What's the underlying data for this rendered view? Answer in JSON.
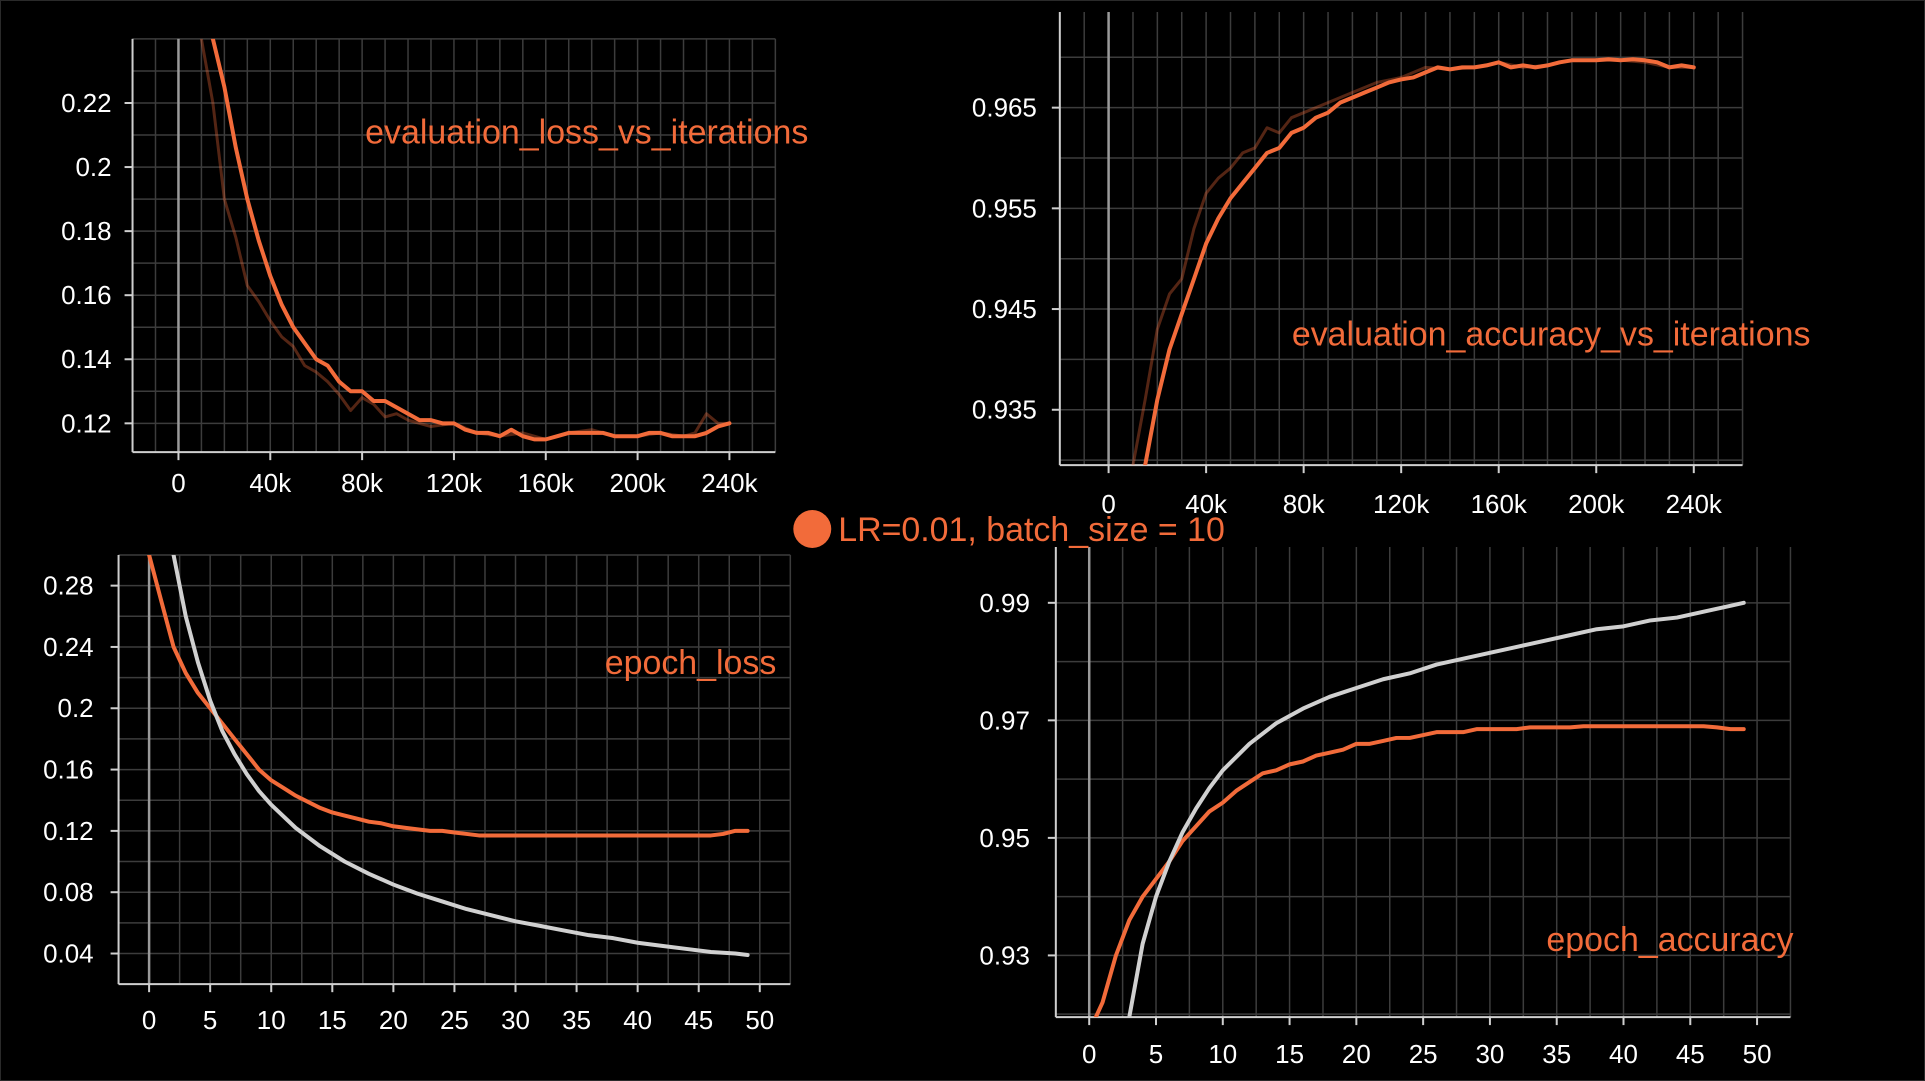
{
  "legend": {
    "label": "LR=0.01, batch_size = 10",
    "color": "#f26b3a"
  },
  "colors": {
    "background": "#000000",
    "grid": "#3c3c3c",
    "orange": "#f26b3a",
    "gray": "#d0d0d0",
    "axis": "#9a9a9a"
  },
  "chart_data": [
    {
      "id": "eval_loss",
      "type": "line",
      "title": "evaluation_loss_vs_iterations",
      "xticks": [
        "0",
        "40k",
        "80k",
        "120k",
        "160k",
        "200k",
        "240k"
      ],
      "xtick_values": [
        0,
        40000,
        80000,
        120000,
        160000,
        200000,
        240000
      ],
      "yticks": [
        "0.12",
        "0.14",
        "0.16",
        "0.18",
        "0.2",
        "0.22"
      ],
      "ytick_values": [
        0.12,
        0.14,
        0.16,
        0.18,
        0.2,
        0.22
      ],
      "xlim": [
        -20000,
        260000
      ],
      "ylim": [
        0.111,
        0.24
      ],
      "grid": true,
      "series": [
        {
          "color": "#f26b3a",
          "x": [
            15000,
            20000,
            25000,
            30000,
            35000,
            40000,
            45000,
            50000,
            55000,
            60000,
            65000,
            70000,
            75000,
            80000,
            85000,
            90000,
            95000,
            100000,
            105000,
            110000,
            115000,
            120000,
            125000,
            130000,
            135000,
            140000,
            145000,
            150000,
            155000,
            160000,
            165000,
            170000,
            175000,
            180000,
            185000,
            190000,
            195000,
            200000,
            205000,
            210000,
            215000,
            220000,
            225000,
            230000,
            235000,
            240000
          ],
          "y": [
            0.24,
            0.225,
            0.206,
            0.19,
            0.177,
            0.166,
            0.157,
            0.15,
            0.145,
            0.14,
            0.138,
            0.133,
            0.13,
            0.13,
            0.127,
            0.127,
            0.125,
            0.123,
            0.121,
            0.121,
            0.12,
            0.12,
            0.118,
            0.117,
            0.117,
            0.116,
            0.118,
            0.116,
            0.115,
            0.115,
            0.116,
            0.117,
            0.117,
            0.117,
            0.117,
            0.116,
            0.116,
            0.116,
            0.117,
            0.117,
            0.116,
            0.116,
            0.116,
            0.117,
            0.119,
            0.12
          ]
        },
        {
          "color": "#f26b3a",
          "faded": true,
          "x": [
            10000,
            15000,
            20000,
            25000,
            30000,
            35000,
            40000,
            45000,
            50000,
            55000,
            60000,
            65000,
            70000,
            75000,
            80000,
            85000,
            90000,
            95000,
            100000,
            110000,
            120000,
            130000,
            140000,
            150000,
            160000,
            170000,
            180000,
            190000,
            200000,
            210000,
            220000,
            225000,
            230000,
            235000,
            240000
          ],
          "y": [
            0.24,
            0.22,
            0.19,
            0.178,
            0.163,
            0.158,
            0.152,
            0.147,
            0.144,
            0.138,
            0.136,
            0.133,
            0.129,
            0.124,
            0.128,
            0.126,
            0.122,
            0.123,
            0.121,
            0.119,
            0.12,
            0.117,
            0.116,
            0.117,
            0.115,
            0.117,
            0.118,
            0.116,
            0.116,
            0.117,
            0.116,
            0.117,
            0.123,
            0.12,
            0.12
          ]
        }
      ]
    },
    {
      "id": "eval_acc",
      "type": "line",
      "title": "evaluation_accuracy_vs_iterations",
      "xticks": [
        "0",
        "40k",
        "80k",
        "120k",
        "160k",
        "200k",
        "240k"
      ],
      "xtick_values": [
        0,
        40000,
        80000,
        120000,
        160000,
        200000,
        240000
      ],
      "yticks": [
        "0.935",
        "0.945",
        "0.955",
        "0.965"
      ],
      "ytick_values": [
        0.935,
        0.945,
        0.955,
        0.965
      ],
      "xlim": [
        -20000,
        260000
      ],
      "ylim": [
        0.9295,
        0.9745
      ],
      "grid": true,
      "series": [
        {
          "color": "#f26b3a",
          "x": [
            15000,
            20000,
            25000,
            30000,
            35000,
            40000,
            45000,
            50000,
            55000,
            60000,
            65000,
            70000,
            75000,
            80000,
            85000,
            90000,
            95000,
            100000,
            105000,
            110000,
            115000,
            120000,
            125000,
            130000,
            135000,
            140000,
            145000,
            150000,
            155000,
            160000,
            165000,
            170000,
            175000,
            180000,
            185000,
            190000,
            195000,
            200000,
            205000,
            210000,
            215000,
            220000,
            225000,
            230000,
            235000,
            240000
          ],
          "y": [
            0.9295,
            0.936,
            0.941,
            0.9445,
            0.948,
            0.9515,
            0.954,
            0.956,
            0.9575,
            0.959,
            0.9605,
            0.961,
            0.9625,
            0.963,
            0.964,
            0.9645,
            0.9655,
            0.966,
            0.9665,
            0.967,
            0.9675,
            0.9678,
            0.968,
            0.9685,
            0.969,
            0.9688,
            0.969,
            0.969,
            0.9692,
            0.9695,
            0.969,
            0.9692,
            0.969,
            0.9692,
            0.9695,
            0.9697,
            0.9697,
            0.9697,
            0.9698,
            0.9697,
            0.9698,
            0.9697,
            0.9695,
            0.969,
            0.9692,
            0.969
          ]
        },
        {
          "color": "#f26b3a",
          "faded": true,
          "x": [
            10000,
            15000,
            20000,
            25000,
            30000,
            35000,
            40000,
            45000,
            50000,
            55000,
            60000,
            65000,
            70000,
            75000,
            80000,
            90000,
            100000,
            110000,
            120000,
            130000,
            140000,
            150000,
            160000,
            170000,
            180000,
            190000,
            200000,
            210000,
            220000,
            230000,
            240000
          ],
          "y": [
            0.9295,
            0.936,
            0.943,
            0.9465,
            0.948,
            0.953,
            0.9565,
            0.958,
            0.959,
            0.9605,
            0.961,
            0.963,
            0.9625,
            0.964,
            0.9645,
            0.9655,
            0.9665,
            0.9675,
            0.968,
            0.969,
            0.9688,
            0.969,
            0.9695,
            0.969,
            0.9692,
            0.9697,
            0.9697,
            0.9697,
            0.9695,
            0.969,
            0.969
          ]
        }
      ]
    },
    {
      "id": "epoch_loss",
      "type": "line",
      "title": "epoch_loss",
      "xticks": [
        "0",
        "5",
        "10",
        "15",
        "20",
        "25",
        "30",
        "35",
        "40",
        "45",
        "50"
      ],
      "xtick_values": [
        0,
        5,
        10,
        15,
        20,
        25,
        30,
        35,
        40,
        45,
        50
      ],
      "yticks": [
        "0.04",
        "0.08",
        "0.12",
        "0.16",
        "0.2",
        "0.24",
        "0.28"
      ],
      "ytick_values": [
        0.04,
        0.08,
        0.12,
        0.16,
        0.2,
        0.24,
        0.28
      ],
      "xlim": [
        -2.5,
        52.5
      ],
      "ylim": [
        0.02,
        0.3
      ],
      "grid": true,
      "series": [
        {
          "color": "#f26b3a",
          "x": [
            0,
            1,
            2,
            3,
            4,
            5,
            6,
            7,
            8,
            9,
            10,
            11,
            12,
            13,
            14,
            15,
            16,
            17,
            18,
            19,
            20,
            21,
            22,
            23,
            24,
            25,
            26,
            27,
            28,
            29,
            30,
            31,
            32,
            33,
            34,
            35,
            36,
            37,
            38,
            39,
            40,
            41,
            42,
            43,
            44,
            45,
            46,
            47,
            48,
            49
          ],
          "y": [
            0.3,
            0.27,
            0.24,
            0.223,
            0.21,
            0.2,
            0.19,
            0.18,
            0.17,
            0.16,
            0.153,
            0.148,
            0.143,
            0.139,
            0.135,
            0.132,
            0.13,
            0.128,
            0.126,
            0.125,
            0.123,
            0.122,
            0.121,
            0.12,
            0.12,
            0.119,
            0.118,
            0.117,
            0.117,
            0.117,
            0.117,
            0.117,
            0.117,
            0.117,
            0.117,
            0.117,
            0.117,
            0.117,
            0.117,
            0.117,
            0.117,
            0.117,
            0.117,
            0.117,
            0.117,
            0.117,
            0.117,
            0.118,
            0.12,
            0.12
          ]
        },
        {
          "color": "#d0d0d0",
          "x": [
            2,
            3,
            4,
            5,
            6,
            7,
            8,
            9,
            10,
            12,
            14,
            16,
            18,
            20,
            22,
            24,
            26,
            28,
            30,
            32,
            34,
            36,
            38,
            40,
            42,
            44,
            46,
            48,
            49
          ],
          "y": [
            0.3,
            0.26,
            0.23,
            0.205,
            0.185,
            0.17,
            0.157,
            0.146,
            0.137,
            0.122,
            0.11,
            0.1,
            0.092,
            0.085,
            0.079,
            0.074,
            0.069,
            0.065,
            0.061,
            0.058,
            0.055,
            0.052,
            0.05,
            0.047,
            0.045,
            0.043,
            0.041,
            0.04,
            0.039
          ]
        }
      ]
    },
    {
      "id": "epoch_acc",
      "type": "line",
      "title": "epoch_accuracy",
      "xticks": [
        "0",
        "5",
        "10",
        "15",
        "20",
        "25",
        "30",
        "35",
        "40",
        "45",
        "50"
      ],
      "xtick_values": [
        0,
        5,
        10,
        15,
        20,
        25,
        30,
        35,
        40,
        45,
        50
      ],
      "yticks": [
        "0.93",
        "0.95",
        "0.97",
        "0.99"
      ],
      "ytick_values": [
        0.93,
        0.95,
        0.97,
        0.99
      ],
      "xlim": [
        -2.5,
        52.5
      ],
      "ylim": [
        0.9195,
        0.9995
      ],
      "grid": true,
      "series": [
        {
          "color": "#f26b3a",
          "x": [
            0.5,
            1,
            2,
            3,
            4,
            5,
            6,
            7,
            8,
            9,
            10,
            11,
            12,
            13,
            14,
            15,
            16,
            17,
            18,
            19,
            20,
            21,
            22,
            23,
            24,
            25,
            26,
            27,
            28,
            29,
            30,
            31,
            32,
            33,
            34,
            35,
            36,
            37,
            38,
            39,
            40,
            41,
            42,
            43,
            44,
            45,
            46,
            47,
            48,
            49
          ],
          "y": [
            0.9195,
            0.922,
            0.93,
            0.936,
            0.94,
            0.943,
            0.946,
            0.9495,
            0.952,
            0.9545,
            0.956,
            0.958,
            0.9595,
            0.961,
            0.9615,
            0.9625,
            0.963,
            0.964,
            0.9645,
            0.965,
            0.966,
            0.966,
            0.9665,
            0.967,
            0.967,
            0.9675,
            0.968,
            0.968,
            0.968,
            0.9685,
            0.9685,
            0.9685,
            0.9685,
            0.9688,
            0.9688,
            0.9688,
            0.9688,
            0.969,
            0.969,
            0.969,
            0.969,
            0.969,
            0.969,
            0.969,
            0.969,
            0.969,
            0.969,
            0.9688,
            0.9685,
            0.9685
          ]
        },
        {
          "color": "#d0d0d0",
          "x": [
            3,
            4,
            5,
            6,
            7,
            8,
            9,
            10,
            12,
            14,
            16,
            18,
            20,
            22,
            24,
            26,
            28,
            30,
            32,
            34,
            36,
            38,
            40,
            42,
            44,
            46,
            48,
            49
          ],
          "y": [
            0.9195,
            0.932,
            0.94,
            0.946,
            0.951,
            0.955,
            0.9585,
            0.9615,
            0.966,
            0.9695,
            0.972,
            0.974,
            0.9755,
            0.977,
            0.978,
            0.9795,
            0.9805,
            0.9815,
            0.9825,
            0.9835,
            0.9845,
            0.9855,
            0.986,
            0.987,
            0.9875,
            0.9885,
            0.9895,
            0.99
          ]
        }
      ]
    }
  ]
}
